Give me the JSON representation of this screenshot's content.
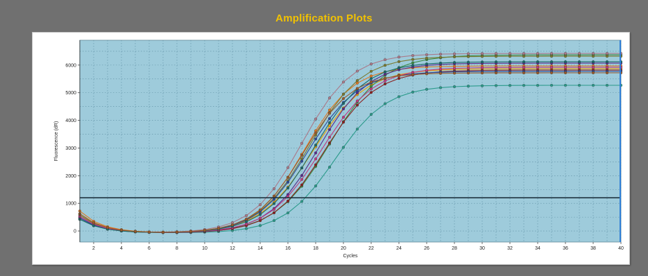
{
  "window": {
    "title": "Amplification Plots"
  },
  "colors": {
    "background": "#707070",
    "title": "#f2c200",
    "plot_area": "#9ecbdb",
    "grid": "#5d8fa3",
    "threshold": "#1f3340",
    "right_marker": "#2f7fd6"
  },
  "chart_data": {
    "type": "line",
    "title": "Amplification Plots",
    "xlabel": "Cycles",
    "ylabel": "Fluorescence (dR)",
    "xlim": [
      1,
      40
    ],
    "ylim": [
      -400,
      6900
    ],
    "xticks": [
      2,
      4,
      6,
      8,
      10,
      12,
      14,
      16,
      18,
      20,
      22,
      24,
      26,
      28,
      30,
      32,
      34,
      36,
      38,
      40
    ],
    "yticks": [
      0,
      1000,
      2000,
      3000,
      4000,
      5000,
      6000
    ],
    "grid": true,
    "threshold": 1200,
    "x": [
      1,
      2,
      3,
      4,
      5,
      6,
      7,
      8,
      9,
      10,
      11,
      12,
      13,
      14,
      15,
      16,
      17,
      18,
      19,
      20,
      21,
      22,
      23,
      24,
      25,
      26,
      27,
      28,
      29,
      30,
      31,
      32,
      33,
      34,
      35,
      36,
      37,
      38,
      39,
      40
    ],
    "series": [
      {
        "color": "#e07820",
        "plateau": 6050,
        "midpoint": 17.2,
        "slope": 1.75,
        "base": 800
      },
      {
        "color": "#f0a000",
        "plateau": 5950,
        "midpoint": 17.8,
        "slope": 1.9,
        "base": 700
      },
      {
        "color": "#2a9a8a",
        "plateau": 5350,
        "midpoint": 19.4,
        "slope": 1.85,
        "base": 550
      },
      {
        "color": "#3a8a40",
        "plateau": 6450,
        "midpoint": 19.0,
        "slope": 1.95,
        "base": 500
      },
      {
        "color": "#8a2020",
        "plateau": 5900,
        "midpoint": 18.6,
        "slope": 1.85,
        "base": 600
      },
      {
        "color": "#5a2a8a",
        "plateau": 6150,
        "midpoint": 18.2,
        "slope": 1.8,
        "base": 550
      },
      {
        "color": "#7a7a30",
        "plateau": 6400,
        "midpoint": 17.6,
        "slope": 1.85,
        "base": 650
      },
      {
        "color": "#aa7a8a",
        "plateau": 6500,
        "midpoint": 17.0,
        "slope": 1.8,
        "base": 600
      },
      {
        "color": "#2a4a9a",
        "plateau": 5850,
        "midpoint": 17.4,
        "slope": 1.8,
        "base": 550
      },
      {
        "color": "#c03a80",
        "plateau": 6000,
        "midpoint": 18.4,
        "slope": 1.9,
        "base": 600
      },
      {
        "color": "#1a6a6a",
        "plateau": 6200,
        "midpoint": 17.9,
        "slope": 1.85,
        "base": 500
      },
      {
        "color": "#9a5a2a",
        "plateau": 5800,
        "midpoint": 17.1,
        "slope": 1.75,
        "base": 700
      }
    ]
  }
}
